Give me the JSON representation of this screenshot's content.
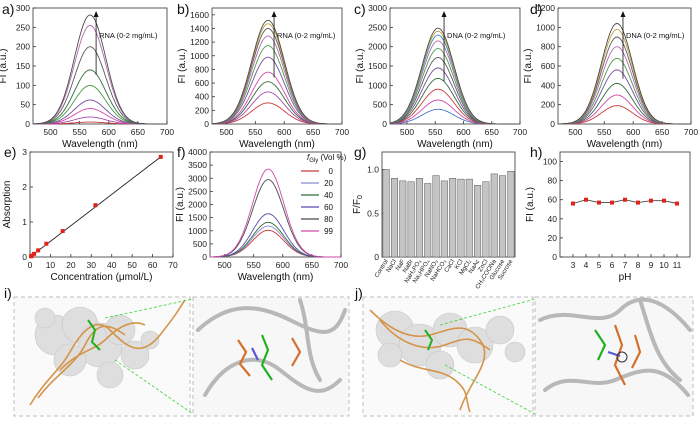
{
  "panels": {
    "i": {
      "letter": "i)"
    },
    "j": {
      "letter": "j)"
    }
  },
  "chart_data": [
    {
      "id": "a",
      "letter": "a)",
      "type": "line",
      "ylabel": "FI (a.u.)",
      "xlabel": "Wavelength (nm)",
      "xlim": [
        470,
        700
      ],
      "ylim": [
        0,
        300
      ],
      "xticks": [
        500,
        550,
        600,
        650,
        700
      ],
      "yticks": [
        0,
        50,
        100,
        150,
        200,
        250,
        300
      ],
      "annotation": "RNA (0-2 mg/mL)",
      "peak_wavelength": 568,
      "peak_width": 38,
      "series": [
        {
          "name": "s1",
          "peak": 5,
          "color": "#c83a3a"
        },
        {
          "name": "s2",
          "peak": 18,
          "color": "#a44ab0"
        },
        {
          "name": "s3",
          "peak": 40,
          "color": "#d14aa8"
        },
        {
          "name": "s4",
          "peak": 62,
          "color": "#7a4aa0"
        },
        {
          "name": "s5",
          "peak": 100,
          "color": "#4a9a4a"
        },
        {
          "name": "s6",
          "peak": 140,
          "color": "#2f6d3a"
        },
        {
          "name": "s7",
          "peak": 200,
          "color": "#5a5a5a"
        },
        {
          "name": "s8",
          "peak": 255,
          "color": "#b06ab0"
        },
        {
          "name": "s9",
          "peak": 282,
          "color": "#4a4a4a"
        }
      ]
    },
    {
      "id": "b",
      "letter": "b)",
      "type": "line",
      "ylabel": "FI (a.u.)",
      "xlabel": "Wavelength (nm)",
      "xlim": [
        475,
        700
      ],
      "ylim": [
        0,
        1700
      ],
      "xticks": [
        500,
        550,
        600,
        650,
        700
      ],
      "yticks": [
        0,
        200,
        400,
        600,
        800,
        1000,
        1200,
        1400,
        1600
      ],
      "annotation": "RNA (0-2 mg/mL)",
      "peak_wavelength": 572,
      "peak_width": 40,
      "series": [
        {
          "name": "s1",
          "peak": 310,
          "color": "#c83a3a"
        },
        {
          "name": "s2",
          "peak": 470,
          "color": "#a44ab0"
        },
        {
          "name": "s3",
          "peak": 620,
          "color": "#2f6d3a"
        },
        {
          "name": "s4",
          "peak": 760,
          "color": "#d14aa8"
        },
        {
          "name": "s5",
          "peak": 980,
          "color": "#7a4aa0"
        },
        {
          "name": "s6",
          "peak": 1150,
          "color": "#4a9a4a"
        },
        {
          "name": "s7",
          "peak": 1290,
          "color": "#b06ab0"
        },
        {
          "name": "s8",
          "peak": 1400,
          "color": "#5a5a5a"
        },
        {
          "name": "s9",
          "peak": 1470,
          "color": "#c0a040"
        },
        {
          "name": "s10",
          "peak": 1520,
          "color": "#4a4a4a"
        }
      ]
    },
    {
      "id": "c",
      "letter": "c)",
      "type": "line",
      "ylabel": "FI (a.u.)",
      "xlabel": "Wavelength (nm)",
      "xlim": [
        470,
        700
      ],
      "ylim": [
        0,
        3000
      ],
      "xticks": [
        500,
        550,
        600,
        650,
        700
      ],
      "yticks": [
        0,
        500,
        1000,
        1500,
        2000,
        2500,
        3000
      ],
      "annotation": "DNA (0-2 mg/mL)",
      "peak_wavelength": 555,
      "peak_width": 40,
      "series": [
        {
          "name": "s1",
          "peak": 380,
          "color": "#4a7ac8"
        },
        {
          "name": "s2",
          "peak": 620,
          "color": "#d14aa8"
        },
        {
          "name": "s3",
          "peak": 900,
          "color": "#c83a3a"
        },
        {
          "name": "s4",
          "peak": 1180,
          "color": "#2f6d3a"
        },
        {
          "name": "s5",
          "peak": 1450,
          "color": "#7a4aa0"
        },
        {
          "name": "s6",
          "peak": 1720,
          "color": "#5a5a5a"
        },
        {
          "name": "s7",
          "peak": 1950,
          "color": "#4a9a4a"
        },
        {
          "name": "s8",
          "peak": 2150,
          "color": "#b06ab0"
        },
        {
          "name": "s9",
          "peak": 2300,
          "color": "#3a8ab0"
        },
        {
          "name": "s10",
          "peak": 2400,
          "color": "#c0a040"
        },
        {
          "name": "s11",
          "peak": 2480,
          "color": "#4a4a4a"
        }
      ]
    },
    {
      "id": "d",
      "letter": "d)",
      "type": "line",
      "ylabel": "FI (a.u.)",
      "xlabel": "Wavelength (nm)",
      "xlim": [
        470,
        700
      ],
      "ylim": [
        0,
        1200
      ],
      "xticks": [
        500,
        550,
        600,
        650,
        700
      ],
      "yticks": [
        0,
        200,
        400,
        600,
        800,
        1000,
        1200
      ],
      "annotation": "DNA (0-2 mg/mL)",
      "peak_wavelength": 572,
      "peak_width": 38,
      "series": [
        {
          "name": "s1",
          "peak": 190,
          "color": "#c83a3a"
        },
        {
          "name": "s2",
          "peak": 300,
          "color": "#d14aa8"
        },
        {
          "name": "s3",
          "peak": 420,
          "color": "#2f6d3a"
        },
        {
          "name": "s4",
          "peak": 560,
          "color": "#7a4aa0"
        },
        {
          "name": "s5",
          "peak": 680,
          "color": "#4a9a4a"
        },
        {
          "name": "s6",
          "peak": 800,
          "color": "#b06ab0"
        },
        {
          "name": "s7",
          "peak": 900,
          "color": "#5a5a5a"
        },
        {
          "name": "s8",
          "peak": 980,
          "color": "#c0a040"
        },
        {
          "name": "s9",
          "peak": 1040,
          "color": "#4a4a4a"
        }
      ]
    },
    {
      "id": "e",
      "letter": "e)",
      "type": "scatter",
      "ylabel": "Absorption",
      "xlabel": "Concentration (μmol/L)",
      "xlim": [
        0,
        70
      ],
      "ylim": [
        0,
        3
      ],
      "xticks": [
        0,
        10,
        20,
        30,
        40,
        50,
        60,
        70
      ],
      "yticks": [
        0,
        1,
        2,
        3
      ],
      "points": [
        [
          0.5,
          0.02
        ],
        [
          1,
          0.04
        ],
        [
          2,
          0.09
        ],
        [
          4,
          0.19
        ],
        [
          8,
          0.38
        ],
        [
          16,
          0.74
        ],
        [
          32,
          1.48
        ],
        [
          64,
          2.86
        ]
      ],
      "fit_line": [
        [
          0,
          0
        ],
        [
          64,
          2.86
        ]
      ]
    },
    {
      "id": "f",
      "letter": "f)",
      "type": "line",
      "ylabel": "FI (a.u.)",
      "xlabel": "Wavelength (nm)",
      "xlim": [
        475,
        700
      ],
      "ylim": [
        0,
        4000
      ],
      "xticks": [
        500,
        550,
        600,
        650,
        700
      ],
      "yticks": [
        0,
        500,
        1000,
        1500,
        2000,
        2500,
        3000,
        3500,
        4000
      ],
      "peak_wavelength": 575,
      "peak_width": 38,
      "legend_title_main": "f",
      "legend_title_sub": "Gly",
      "legend_title_unit": " (Vol %)",
      "series": [
        {
          "name": "0",
          "peak": 1020,
          "color": "#c83a3a"
        },
        {
          "name": "20",
          "peak": 1180,
          "color": "#8a8ad0"
        },
        {
          "name": "40",
          "peak": 1320,
          "color": "#2f6d3a"
        },
        {
          "name": "60",
          "peak": 1650,
          "color": "#5a4ab0"
        },
        {
          "name": "80",
          "peak": 2950,
          "color": "#4a4a4a"
        },
        {
          "name": "99",
          "peak": 3350,
          "color": "#d14aa8"
        }
      ]
    },
    {
      "id": "g",
      "letter": "g)",
      "type": "bar",
      "ylabel_main": "F/F",
      "ylabel_sub": "0",
      "ylim": [
        0,
        1.2
      ],
      "yticks": [
        0,
        0.5,
        1.0
      ],
      "ytick_labels": [
        "0",
        "0.5",
        "1.0"
      ],
      "bar_color": "#c4c4c4",
      "categories": [
        "Control",
        "NaCl",
        "NaF",
        "NaBr",
        "NaH2PO4",
        "Na2HPO4",
        "NaNO3",
        "NaHCO3",
        "CaCl",
        "KCl",
        "MgCl2",
        "NaAc",
        "ZnCl",
        "CH3COONa",
        "Glucose",
        "Sucrose"
      ],
      "category_labels": [
        "Control",
        "NaCl",
        "NaF",
        "NaBr",
        "NaH₂PO₄",
        "Na₂HPO₄",
        "NaNO₃",
        "NaHCO₃",
        "CaCl",
        "KCl",
        "MgCl₂",
        "NaAc",
        "ZnCl",
        "CH₃COONa",
        "Glucose",
        "Sucrose"
      ],
      "values": [
        1.0,
        0.9,
        0.87,
        0.86,
        0.9,
        0.84,
        0.93,
        0.87,
        0.9,
        0.89,
        0.89,
        0.82,
        0.86,
        0.95,
        0.93,
        0.98
      ]
    },
    {
      "id": "h",
      "letter": "h)",
      "type": "scatter",
      "ylabel": "FI (a.u.)",
      "xlabel": "pH",
      "xlim": [
        2,
        12
      ],
      "ylim": [
        0,
        110
      ],
      "xticks": [
        3,
        4,
        5,
        6,
        7,
        8,
        9,
        10,
        11
      ],
      "yticks": [
        0,
        20,
        40,
        60,
        80,
        100
      ],
      "points": [
        [
          3,
          56
        ],
        [
          4,
          60
        ],
        [
          5,
          57
        ],
        [
          6,
          57
        ],
        [
          7,
          60
        ],
        [
          8,
          57
        ],
        [
          9,
          59
        ],
        [
          10,
          59
        ],
        [
          11,
          56
        ]
      ]
    }
  ]
}
